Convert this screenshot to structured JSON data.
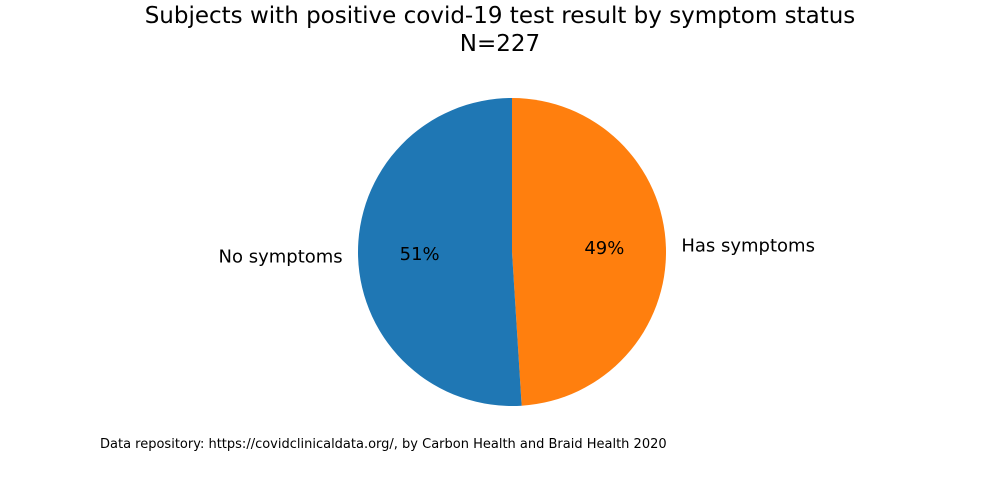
{
  "chart_data": {
    "type": "pie",
    "title": "Subjects with positive covid-19 test result by symptom status",
    "subtitle": "N=227",
    "slices": [
      {
        "label": "Has symptoms",
        "percent_label": "49%",
        "value": 49,
        "color": "#ff7f0e"
      },
      {
        "label": "No symptoms",
        "percent_label": "51%",
        "value": 51,
        "color": "#1f77b4"
      }
    ],
    "start_angle_deg": 90,
    "direction": "clockwise"
  },
  "footnote": "Data repository: https://covidclinicaldata.org/, by Carbon Health and Braid Health 2020"
}
